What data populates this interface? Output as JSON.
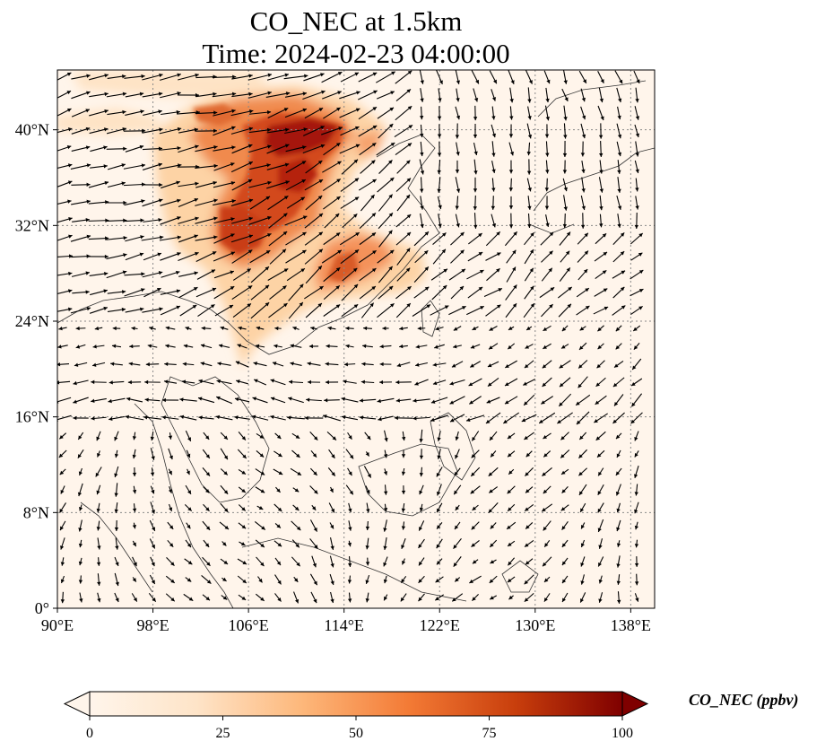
{
  "title": {
    "line1": "CO_NEC at 1.5km",
    "line2": "Time: 2024-02-23 04:00:00"
  },
  "map": {
    "lon_range": [
      90,
      140
    ],
    "lat_range": [
      0,
      45
    ],
    "x_ticks": [
      "90°E",
      "98°E",
      "106°E",
      "114°E",
      "122°E",
      "130°E",
      "138°E"
    ],
    "x_tick_values": [
      90,
      98,
      106,
      114,
      122,
      130,
      138
    ],
    "y_ticks": [
      "0°",
      "8°N",
      "16°N",
      "24°N",
      "32°N",
      "40°N"
    ],
    "y_tick_values": [
      0,
      8,
      16,
      24,
      32,
      40
    ],
    "gridlines": true,
    "field": "CO_NEC concentration with wind vectors",
    "high_concentration_regions": [
      {
        "lon": [
          102,
          114
        ],
        "lat": [
          28,
          41
        ],
        "level": 90
      },
      {
        "lon": [
          111,
          118
        ],
        "lat": [
          26,
          31
        ],
        "level": 70
      }
    ]
  },
  "colorbar": {
    "label": "CO_NEC (ppbv)",
    "ticks": [
      "0",
      "25",
      "50",
      "75",
      "100"
    ],
    "tick_values": [
      0,
      25,
      50,
      75,
      100
    ],
    "range": [
      0,
      100
    ],
    "colormap": [
      "#fff5eb",
      "#fdd8a8",
      "#fd9a52",
      "#e95313",
      "#b52205",
      "#7f0000"
    ]
  }
}
